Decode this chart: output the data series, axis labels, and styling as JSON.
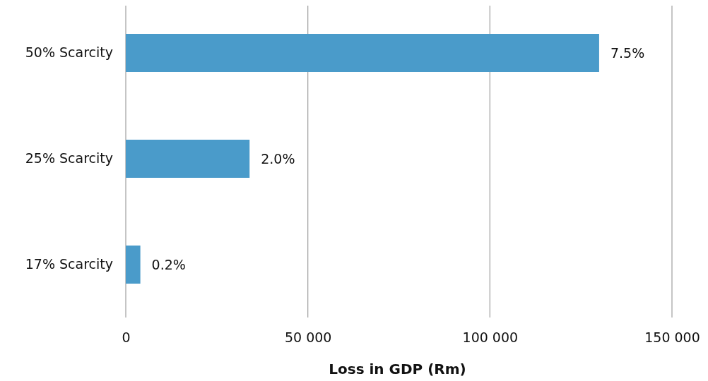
{
  "chart_data": {
    "type": "bar",
    "orientation": "horizontal",
    "xlabel": "Loss in GDP (Rm)",
    "categories": [
      "50% Scarcity",
      "25% Scarcity",
      "17% Scarcity"
    ],
    "values": [
      130000,
      34000,
      4000
    ],
    "annotations": [
      {
        "text": "7.5%",
        "x": 130000,
        "y": "50% Scarcity"
      },
      {
        "text": "2.0%",
        "x": 34000,
        "y": "25% Scarcity"
      },
      {
        "text": "0.2%",
        "x": 4000,
        "y": "17% Scarcity"
      }
    ],
    "color": "#4a9bca",
    "xlim": [
      0,
      150000
    ],
    "xticks": [
      {
        "value": 0,
        "label": "0"
      },
      {
        "value": 50000,
        "label": "50 000"
      },
      {
        "value": 100000,
        "label": "100 000"
      },
      {
        "value": 150000,
        "label": "150 000"
      }
    ],
    "grid": "x"
  }
}
